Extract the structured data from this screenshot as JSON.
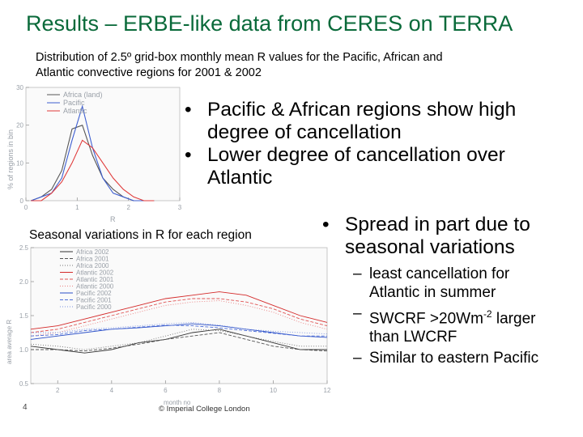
{
  "title": "Results – ERBE-like data from CERES on TERRA",
  "subtitle": {
    "line1": "Distribution of 2.5º grid-box monthly mean R values for the Pacific, African  and",
    "line2": "Atlantic convective regions for 2001 & 2002"
  },
  "bullets": [
    {
      "bullet": "•",
      "lines": [
        "Pacific & African regions show high",
        "degree of cancellation"
      ]
    },
    {
      "bullet": "•",
      "lines": [
        "Lower degree of cancellation over",
        "Atlantic"
      ]
    }
  ],
  "spread_bullet": {
    "bullet": "•",
    "lines": [
      "Spread in part due to",
      "seasonal variations"
    ]
  },
  "sub_bullets": [
    {
      "dash": "–",
      "lines": [
        "least cancellation for",
        "Atlantic in summer"
      ]
    },
    {
      "dash": "–",
      "lines": [
        "SWCRF >20Wm",
        "-2",
        " larger",
        "than LWCRF"
      ]
    },
    {
      "dash": "–",
      "lines": [
        "Similar to eastern Pacific"
      ]
    }
  ],
  "seasonal_caption": "Seasonal variations in R for each region",
  "page_number": "4",
  "copyright": "© Imperial College London",
  "colors": {
    "title": "#0a6a3a",
    "africa": "#555555",
    "pacific": "#3f5fd0",
    "atlantic": "#e03a3a"
  },
  "chart_data": [
    {
      "type": "line",
      "title": "",
      "xlabel": "R",
      "ylabel": "% of regions in bin",
      "xlim": [
        0,
        3
      ],
      "ylim": [
        0,
        30
      ],
      "x_ticks": [
        "0",
        "1",
        "2",
        "3"
      ],
      "y_ticks": [
        "0",
        "10",
        "20",
        "30"
      ],
      "legend": "top-left",
      "x": [
        0.1,
        0.3,
        0.5,
        0.7,
        0.9,
        1.1,
        1.3,
        1.5,
        1.7,
        1.9,
        2.1,
        2.3,
        2.5
      ],
      "series": [
        {
          "name": "Africa (land)",
          "color": "#555555",
          "values": [
            0,
            1,
            3,
            8,
            19,
            20,
            12,
            6,
            3,
            1,
            0,
            0,
            0
          ]
        },
        {
          "name": "Pacific",
          "color": "#3f5fd0",
          "values": [
            0,
            1,
            2,
            6,
            16,
            25,
            14,
            6,
            2,
            1,
            0,
            0,
            0
          ]
        },
        {
          "name": "Atlantic",
          "color": "#e03a3a",
          "values": [
            0,
            0,
            2,
            5,
            10,
            16,
            14,
            10,
            6,
            3,
            1,
            0,
            0
          ]
        }
      ]
    },
    {
      "type": "line",
      "title": "",
      "xlabel": "month no",
      "ylabel": "area average R",
      "xlim": [
        1,
        12
      ],
      "ylim": [
        0.5,
        2.5
      ],
      "x_ticks": [
        "2",
        "4",
        "6",
        "8",
        "10",
        "12"
      ],
      "y_ticks": [
        "0.5",
        "1.0",
        "1.5",
        "2.0",
        "2.5"
      ],
      "legend": "top-center",
      "x": [
        1,
        2,
        3,
        4,
        5,
        6,
        7,
        8,
        9,
        10,
        11,
        12
      ],
      "series": [
        {
          "name": "Africa 2002",
          "color": "#333333",
          "dash": "",
          "values": [
            1.05,
            1.0,
            0.95,
            1.0,
            1.1,
            1.15,
            1.25,
            1.3,
            1.2,
            1.1,
            1.0,
            1.0
          ]
        },
        {
          "name": "Africa 2001",
          "color": "#555555",
          "dash": "4 2",
          "values": [
            1.0,
            1.0,
            0.98,
            1.02,
            1.08,
            1.15,
            1.2,
            1.25,
            1.15,
            1.05,
            1.0,
            0.98
          ]
        },
        {
          "name": "Africa 2000",
          "color": "#777777",
          "dash": "1 2",
          "values": [
            1.08,
            1.05,
            1.0,
            1.05,
            1.1,
            1.2,
            1.3,
            1.28,
            1.2,
            1.12,
            1.05,
            1.05
          ]
        },
        {
          "name": "Atlantic 2002",
          "color": "#d42a2a",
          "dash": "",
          "values": [
            1.3,
            1.35,
            1.45,
            1.55,
            1.65,
            1.75,
            1.8,
            1.85,
            1.8,
            1.65,
            1.5,
            1.4
          ]
        },
        {
          "name": "Atlantic 2001",
          "color": "#e05555",
          "dash": "4 2",
          "values": [
            1.25,
            1.3,
            1.4,
            1.5,
            1.6,
            1.7,
            1.75,
            1.75,
            1.7,
            1.6,
            1.45,
            1.35
          ]
        },
        {
          "name": "Atlantic 2000",
          "color": "#ea8080",
          "dash": "1 2",
          "values": [
            1.2,
            1.25,
            1.35,
            1.45,
            1.55,
            1.65,
            1.7,
            1.72,
            1.65,
            1.55,
            1.4,
            1.3
          ]
        },
        {
          "name": "Pacific 2002",
          "color": "#2a4fc8",
          "dash": "",
          "values": [
            1.15,
            1.2,
            1.25,
            1.3,
            1.32,
            1.35,
            1.38,
            1.35,
            1.3,
            1.25,
            1.2,
            1.18
          ]
        },
        {
          "name": "Pacific 2001",
          "color": "#4f6fd8",
          "dash": "4 2",
          "values": [
            1.2,
            1.22,
            1.28,
            1.3,
            1.33,
            1.36,
            1.35,
            1.32,
            1.28,
            1.24,
            1.2,
            1.2
          ]
        },
        {
          "name": "Pacific 2000",
          "color": "#7a92e0",
          "dash": "1 2",
          "values": [
            1.25,
            1.25,
            1.3,
            1.32,
            1.35,
            1.38,
            1.4,
            1.36,
            1.3,
            1.27,
            1.25,
            1.23
          ]
        }
      ]
    }
  ]
}
